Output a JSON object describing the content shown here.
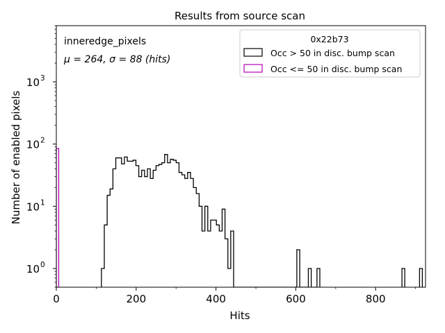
{
  "chart_data": {
    "type": "histogram",
    "title": "Results from source scan",
    "xlabel": "Hits",
    "ylabel": "Number of enabled pixels",
    "yscale": "log",
    "xlim": [
      0,
      925
    ],
    "ylim": [
      0.5,
      8000
    ],
    "grid": false,
    "legend_placement": "top-right",
    "legend_title": "0x22b73",
    "annotations": [
      "inneredge_pixels",
      "μ = 264, σ = 88 (hits)"
    ],
    "x_ticks": [
      {
        "value": 0,
        "label": "0"
      },
      {
        "value": 200,
        "label": "200"
      },
      {
        "value": 400,
        "label": "400"
      },
      {
        "value": 600,
        "label": "600"
      },
      {
        "value": 800,
        "label": "800"
      }
    ],
    "y_ticks": [
      {
        "value": 1,
        "label": "10",
        "exp": "0"
      },
      {
        "value": 10,
        "label": "10",
        "exp": "1"
      },
      {
        "value": 100,
        "label": "10",
        "exp": "2"
      },
      {
        "value": 1000,
        "label": "10",
        "exp": "3"
      }
    ],
    "series": [
      {
        "name": "Occ > 50 in disc. bump scan",
        "color": "#000000",
        "bin_width": 7.2,
        "bin_start": 113,
        "values": [
          1,
          5,
          15,
          19,
          40,
          60,
          60,
          48,
          62,
          53,
          53,
          55,
          45,
          30,
          38,
          30,
          40,
          28,
          38,
          45,
          47,
          50,
          68,
          50,
          57,
          55,
          50,
          35,
          32,
          28,
          35,
          28,
          20,
          16,
          10,
          4,
          10,
          4,
          6,
          6,
          5,
          4,
          9,
          3,
          1,
          4,
          0,
          0,
          0,
          0,
          0,
          0,
          0,
          0,
          0,
          0,
          0,
          0,
          0,
          0,
          0,
          0,
          0,
          0,
          0,
          0,
          0,
          0,
          2,
          0,
          0,
          0,
          1,
          0,
          0,
          1
        ]
      },
      {
        "name": "Occ <= 50 in disc. bump scan",
        "color": "#b000b5",
        "bins": [
          [
            0,
            6,
            85
          ]
        ]
      }
    ],
    "extra_bins": [
      {
        "series": 0,
        "x0": 866,
        "x1": 873,
        "value": 1
      },
      {
        "series": 0,
        "x0": 910,
        "x1": 917,
        "value": 1
      }
    ]
  }
}
